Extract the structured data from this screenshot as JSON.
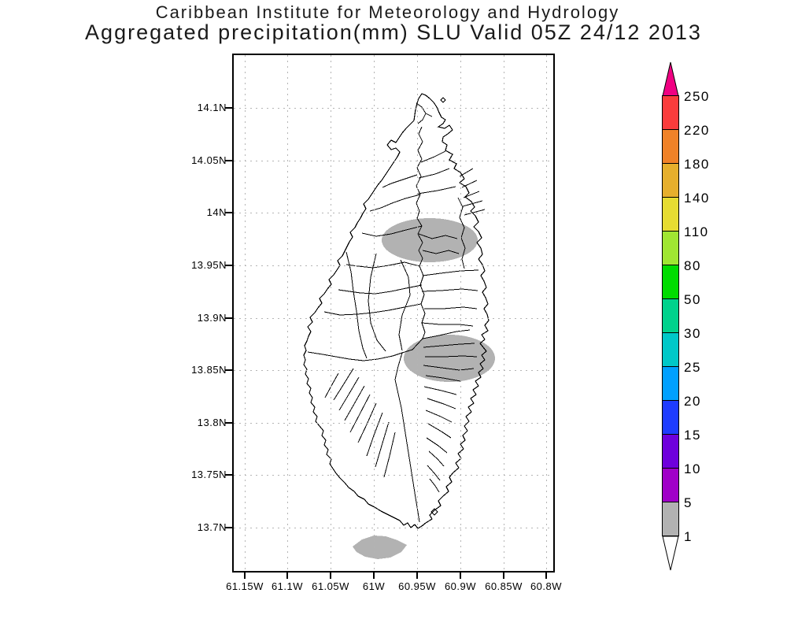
{
  "header": {
    "title_line1": "Caribbean Institute for Meteorology and Hydrology",
    "title_line2": "Aggregated precipitation(mm) SLU Valid 05Z 24/12 2013"
  },
  "map": {
    "lat_labels": [
      "14.1N",
      "14.05N",
      "14N",
      "13.95N",
      "13.9N",
      "13.85N",
      "13.8N",
      "13.75N",
      "13.7N"
    ],
    "lon_labels": [
      "61.15W",
      "61.1W",
      "61.05W",
      "61W",
      "60.95W",
      "60.9W",
      "60.85W",
      "60.8W"
    ]
  },
  "colorbar": {
    "levels_top_to_bottom": [
      "250",
      "220",
      "180",
      "140",
      "110",
      "80",
      "50",
      "30",
      "25",
      "20",
      "15",
      "10",
      "5",
      "1"
    ],
    "segment_colors_top_to_bottom": [
      "#FA3C3C",
      "#F08228",
      "#E6AF2D",
      "#E6DC32",
      "#A0E632",
      "#00DC00",
      "#00D28C",
      "#00C8C8",
      "#00A0FF",
      "#1E3CFF",
      "#6E00DC",
      "#A000C8",
      "#B2B2B2"
    ],
    "above_max_color": "#F00082",
    "below_min_color": "#FFFFFF"
  },
  "colors": {
    "shade_gray": "#B2B2B2",
    "coast_line": "#000000",
    "grid_dots": "#B4B4B4"
  },
  "chart_data": {
    "type": "map",
    "title": "Aggregated precipitation(mm) SLU Valid 05Z 24/12 2013",
    "organization": "Caribbean Institute for Meteorology and Hydrology",
    "region_code": "SLU",
    "lat_axis_ticks": [
      14.1,
      14.05,
      14.0,
      13.95,
      13.9,
      13.85,
      13.8,
      13.75,
      13.7
    ],
    "lon_axis_ticks": [
      -61.15,
      -61.1,
      -61.05,
      -61.0,
      -60.95,
      -60.9,
      -60.85,
      -60.8
    ],
    "colorbar_levels_mm": [
      1,
      5,
      10,
      15,
      20,
      25,
      30,
      50,
      80,
      110,
      140,
      180,
      220,
      250
    ],
    "shaded_regions_mm_1_to_5": [
      {
        "approx_center_lat": 13.975,
        "approx_center_lon": -60.935,
        "location": "north-central watersheds"
      },
      {
        "approx_center_lat": 13.865,
        "approx_center_lon": -60.905,
        "location": "east-central watersheds"
      },
      {
        "approx_center_lat": 13.69,
        "approx_center_lon": -60.99,
        "location": "offshore south of island"
      }
    ]
  }
}
